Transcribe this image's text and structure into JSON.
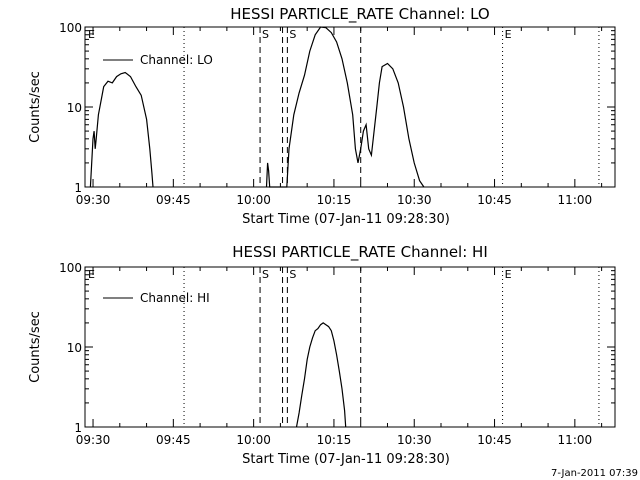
{
  "chart_data": [
    {
      "type": "line",
      "title": "HESSI PARTICLE_RATE Channel: LO",
      "xlabel": "Start Time (07-Jan-11 09:28:30)",
      "ylabel": "Counts/sec",
      "yscale": "log",
      "ylim": [
        1,
        100
      ],
      "xlim": [
        "09:28:30",
        "11:07:30"
      ],
      "xticks": [
        "09:30",
        "09:45",
        "10:00",
        "10:15",
        "10:30",
        "10:45",
        "11:00"
      ],
      "yticks": [
        "1",
        "10",
        "100"
      ],
      "legend_position": "top-left",
      "series": [
        {
          "name": "Channel: LO",
          "x": [
            "09:29:30",
            "09:30:00",
            "09:30:12",
            "09:30:24",
            "09:30:36",
            "09:31:00",
            "09:31:36",
            "09:32:00",
            "09:32:48",
            "09:33:36",
            "09:34:24",
            "09:35:12",
            "09:36:00",
            "09:37:00",
            "09:38:00",
            "09:39:00",
            "09:40:00",
            "09:40:36",
            "09:41:00",
            "09:41:12",
            "10:02:24",
            "10:02:36",
            "10:02:48",
            "10:03:00",
            "10:06:12",
            "10:06:36",
            "10:07:30",
            "10:08:30",
            "10:09:30",
            "10:10:30",
            "10:11:30",
            "10:12:30",
            "10:13:30",
            "10:14:30",
            "10:15:30",
            "10:16:30",
            "10:17:30",
            "10:18:30",
            "10:19:00",
            "10:19:30",
            "10:20:00",
            "10:20:30",
            "10:21:00",
            "10:21:30",
            "10:22:00",
            "10:22:30",
            "10:23:00",
            "10:23:30",
            "10:24:00",
            "10:25:00",
            "10:26:00",
            "10:27:00",
            "10:28:00",
            "10:29:00",
            "10:30:00",
            "10:31:00",
            "10:31:48"
          ],
          "values": [
            1,
            4,
            5,
            3,
            4,
            8,
            13,
            18,
            21,
            20,
            24,
            26,
            27,
            24,
            18,
            14,
            7,
            3,
            1.5,
            1,
            1,
            2,
            1.6,
            1,
            1,
            3,
            8,
            15,
            25,
            50,
            80,
            100,
            98,
            85,
            65,
            40,
            20,
            8,
            3,
            2,
            3,
            5,
            6,
            3,
            2.5,
            5,
            10,
            20,
            32,
            35,
            30,
            20,
            10,
            4,
            2,
            1.2,
            1
          ]
        }
      ],
      "annotations": {
        "markers": [
          "E",
          "S",
          "S",
          "E"
        ],
        "vertical_lines": [
          {
            "style": "dotted",
            "x": "09:47:00"
          },
          {
            "style": "dashed",
            "x": "10:01:12"
          },
          {
            "style": "dashed",
            "x": "10:05:24"
          },
          {
            "style": "dashed",
            "x": "10:06:18"
          },
          {
            "style": "dashed",
            "x": "10:20:00"
          },
          {
            "style": "dotted",
            "x": "10:46:30"
          },
          {
            "style": "dotted",
            "x": "11:04:30"
          }
        ]
      }
    },
    {
      "type": "line",
      "title": "HESSI PARTICLE_RATE Channel: HI",
      "xlabel": "Start Time (07-Jan-11 09:28:30)",
      "ylabel": "Counts/sec",
      "yscale": "log",
      "ylim": [
        1,
        100
      ],
      "xlim": [
        "09:28:30",
        "11:07:30"
      ],
      "xticks": [
        "09:30",
        "09:45",
        "10:00",
        "10:15",
        "10:30",
        "10:45",
        "11:00"
      ],
      "yticks": [
        "1",
        "10",
        "100"
      ],
      "legend_position": "top-left",
      "series": [
        {
          "name": "Channel: HI",
          "x": [
            "10:08:00",
            "10:08:30",
            "10:09:00",
            "10:09:30",
            "10:10:00",
            "10:10:30",
            "10:11:00",
            "10:11:30",
            "10:12:00",
            "10:12:30",
            "10:13:00",
            "10:13:30",
            "10:14:00",
            "10:14:30",
            "10:15:00",
            "10:15:30",
            "10:16:00",
            "10:16:30",
            "10:17:00",
            "10:17:12"
          ],
          "values": [
            1,
            1.5,
            2.5,
            4,
            7,
            10,
            13,
            16,
            17,
            19,
            20,
            19,
            18,
            16,
            12,
            8,
            5,
            3,
            1.6,
            1
          ]
        }
      ],
      "annotations": {
        "markers": [
          "E",
          "S",
          "S",
          "E"
        ],
        "vertical_lines": [
          {
            "style": "dotted",
            "x": "09:47:00"
          },
          {
            "style": "dashed",
            "x": "10:01:12"
          },
          {
            "style": "dashed",
            "x": "10:05:24"
          },
          {
            "style": "dashed",
            "x": "10:06:18"
          },
          {
            "style": "dashed",
            "x": "10:20:00"
          },
          {
            "style": "dotted",
            "x": "10:46:30"
          },
          {
            "style": "dotted",
            "x": "11:04:30"
          }
        ]
      }
    }
  ],
  "footer": {
    "timestamp": "7-Jan-2011 07:39"
  }
}
